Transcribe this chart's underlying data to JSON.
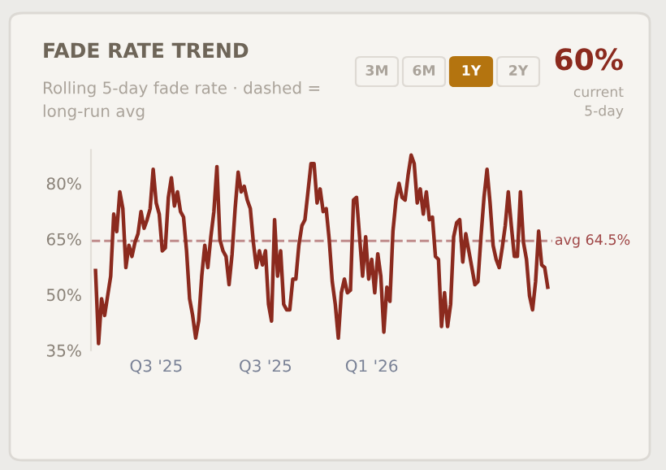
{
  "chart_data": {
    "type": "line",
    "title": "FADE RATE TREND",
    "subtitle": "Rolling 5-day fade rate · dashed = long-run avg",
    "annotations": [
      "3M",
      "6M",
      "1Y",
      "2Y",
      "60%",
      "current\n5-day"
    ],
    "categories": [
      null,
      null,
      null,
      null,
      null,
      null,
      null,
      null,
      null,
      null,
      null,
      null,
      null,
      null,
      null,
      null,
      null,
      null,
      null,
      null,
      "Q3 '25",
      null,
      null,
      null,
      null,
      null,
      null,
      null,
      null,
      null,
      null,
      null,
      null,
      null,
      null,
      null,
      null,
      null,
      null,
      null,
      null,
      null,
      null,
      null,
      null,
      null,
      null,
      null,
      null,
      null,
      null,
      null,
      null,
      null,
      null,
      null,
      "Q3 '25",
      null,
      null,
      null,
      null,
      null,
      null,
      null,
      null,
      null,
      null,
      null,
      null,
      null,
      null,
      null,
      null,
      null,
      null,
      null,
      null,
      null,
      null,
      null,
      null,
      null,
      null,
      null,
      null,
      null,
      null,
      null,
      null,
      null,
      null,
      "Q1 '26",
      null,
      null,
      null,
      null,
      null,
      null,
      null,
      null,
      null,
      null,
      null,
      null,
      null,
      null,
      null,
      null,
      null,
      null,
      null,
      null,
      null,
      null,
      null,
      null,
      null,
      null,
      null,
      null,
      null,
      null,
      null,
      null,
      null,
      null,
      null,
      null,
      null,
      null,
      null,
      null,
      null,
      null,
      null,
      null,
      null,
      null,
      null,
      null,
      null,
      null,
      null,
      null,
      null,
      null,
      null,
      null,
      null,
      null
    ],
    "series": [
      {
        "color": "#8b2a1e",
        "values": [
          56.5,
          36.8,
          48.9,
          44.4,
          49.7,
          55,
          71.7,
          67,
          77.7,
          73.2,
          57.3,
          63.3,
          60.3,
          64.1,
          66.4,
          72.4,
          67.9,
          70.2,
          73.2,
          83.8,
          74.7,
          71.7,
          61.8,
          62.6,
          76.2,
          81.5,
          73.9,
          77.7,
          72.4,
          70.9,
          61.8,
          48.9,
          44.4,
          38.3,
          43,
          55,
          63.3,
          57.3,
          65.6,
          72.4,
          84.5,
          64.8,
          61.8,
          60.3,
          52.7,
          61,
          73.2,
          83,
          77.7,
          79.2,
          75.5,
          73.2,
          64.1,
          57.3,
          61.8,
          58,
          61.8,
          47.4,
          42.9,
          70.2,
          55,
          61.8,
          47.4,
          45.9,
          45.9,
          54.2,
          54.2,
          63.3,
          68.6,
          70.2,
          77.7,
          85.3,
          85.3,
          74.7,
          78.5,
          72.4,
          73.2,
          64.8,
          53.5,
          47.4,
          38.3,
          50.5,
          54.2,
          50.5,
          51.2,
          75.5,
          76.2,
          65.6,
          55,
          65.6,
          54.2,
          59.5,
          50.5,
          61,
          55,
          39.9,
          52,
          48.2,
          67.1,
          75.5,
          80,
          76.2,
          75.5,
          82.3,
          87.6,
          85.3,
          74.7,
          78.5,
          71.7,
          77.7,
          70.2,
          70.9,
          60.3,
          59.5,
          41.4,
          50.5,
          41.4,
          47.4,
          65.6,
          69.4,
          70.2,
          58.8,
          66.4,
          61.8,
          57.3,
          52.7,
          53.5,
          65.6,
          76.2,
          83.8,
          74.7,
          63.3,
          59.5,
          57.3,
          62.6,
          68.6,
          77.7,
          68.6,
          60.3,
          60.3,
          77.7,
          64.1,
          59.5,
          49.7,
          45.9,
          53.5,
          67.1,
          58,
          57.3,
          52
        ]
      }
    ],
    "ylim": [
      35,
      89
    ],
    "yticks": [
      {
        "value": 35,
        "label": "35%"
      },
      {
        "value": 50,
        "label": "50%"
      },
      {
        "value": 65,
        "label": "65%"
      },
      {
        "value": 80,
        "label": "80%"
      }
    ],
    "ref_lines": [
      {
        "axis": "y",
        "value": 64.5,
        "label": "avg 64.5%",
        "color": "#c08c8c",
        "line_style": "dashed"
      }
    ],
    "grid": false,
    "legend": false,
    "marker": "none",
    "line_style": "solid"
  }
}
